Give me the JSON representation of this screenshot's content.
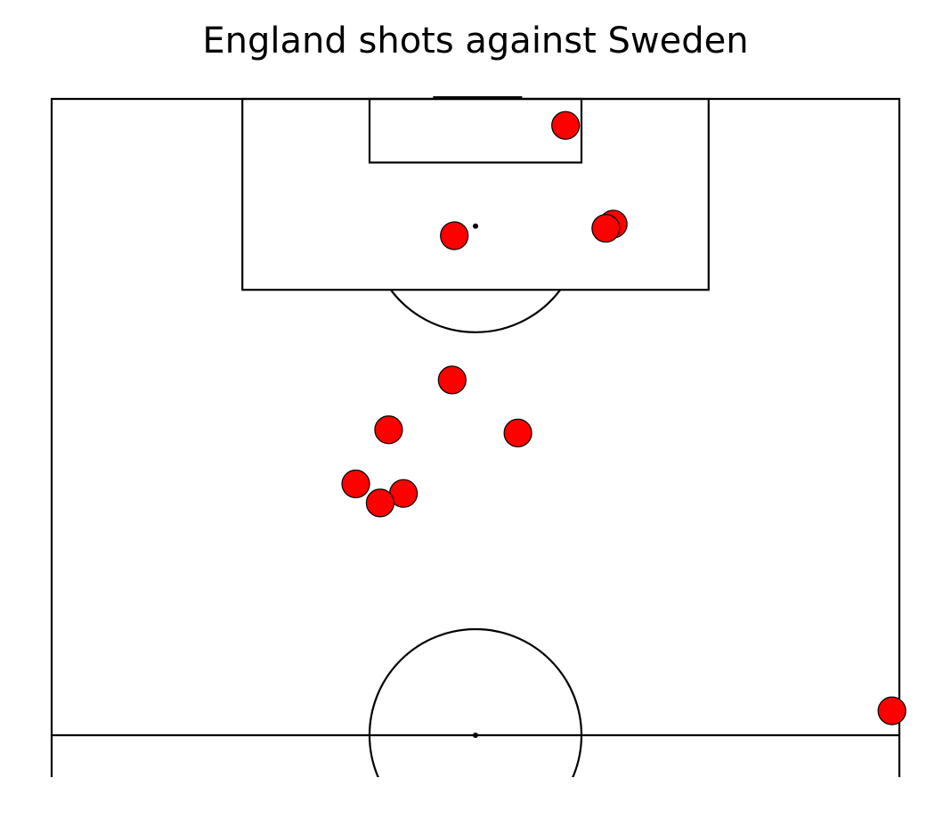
{
  "chart_data": {
    "type": "scatter",
    "title": "England shots against Sweden",
    "xlabel": "",
    "ylabel": "",
    "units": "yards (pitch 120 x 80, attacking toward y = 0)",
    "xlim": [
      0,
      80
    ],
    "ylim": [
      0,
      64
    ],
    "grid": false,
    "series": [
      {
        "x": [
          48.5,
          38.0,
          53.0,
          52.3,
          37.8,
          44.0,
          31.8,
          33.2,
          28.7,
          31.0,
          79.3
        ],
        "y": [
          2.5,
          12.9,
          11.8,
          12.2,
          26.5,
          31.5,
          31.2,
          37.2,
          36.3,
          38.1,
          57.7
        ]
      }
    ]
  },
  "colors": {
    "marker_fill": "#ff0000",
    "marker_edge": "#000000",
    "line": "#000000",
    "background": "#ffffff"
  }
}
